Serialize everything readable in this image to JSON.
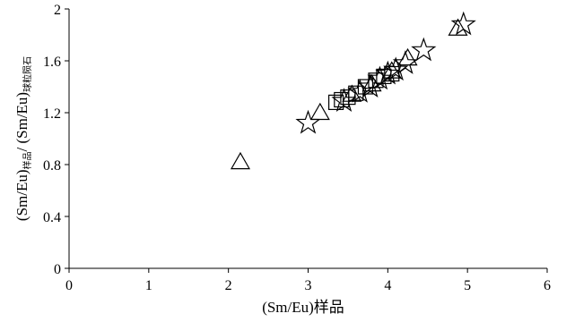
{
  "chart_data": {
    "type": "scatter",
    "xlabel_main": "(Sm/Eu)",
    "xlabel_sub": "样品",
    "ylabel_part1": "(Sm/Eu)",
    "ylabel_sub1": "样品",
    "ylabel_part2": "/ (Sm/Eu)",
    "ylabel_sub2": "球粒陨石",
    "xlim": [
      0,
      6
    ],
    "ylim": [
      0,
      2
    ],
    "x_ticks": [
      "0",
      "1",
      "2",
      "3",
      "4",
      "5",
      "6"
    ],
    "y_ticks": [
      "0",
      "0.4",
      "0.8",
      "1.2",
      "1.6",
      "2"
    ],
    "grid": false,
    "series": [
      {
        "marker": "triangle",
        "points": [
          [
            2.15,
            0.82
          ],
          [
            3.15,
            1.2
          ],
          [
            3.55,
            1.34
          ],
          [
            3.8,
            1.42
          ],
          [
            4.05,
            1.52
          ],
          [
            4.25,
            1.62
          ],
          [
            4.88,
            1.85
          ]
        ]
      },
      {
        "marker": "square",
        "points": [
          [
            3.35,
            1.28
          ],
          [
            3.42,
            1.3
          ],
          [
            3.5,
            1.32
          ],
          [
            3.6,
            1.35
          ],
          [
            3.72,
            1.4
          ],
          [
            3.85,
            1.45
          ],
          [
            3.95,
            1.48
          ],
          [
            4.05,
            1.5
          ]
        ]
      },
      {
        "marker": "star",
        "points": [
          [
            3.0,
            1.12
          ],
          [
            3.45,
            1.29
          ],
          [
            3.65,
            1.36
          ],
          [
            3.78,
            1.4
          ],
          [
            3.9,
            1.46
          ],
          [
            4.0,
            1.5
          ],
          [
            4.1,
            1.53
          ],
          [
            4.22,
            1.58
          ],
          [
            4.45,
            1.68
          ],
          [
            4.95,
            1.88
          ]
        ]
      }
    ]
  }
}
